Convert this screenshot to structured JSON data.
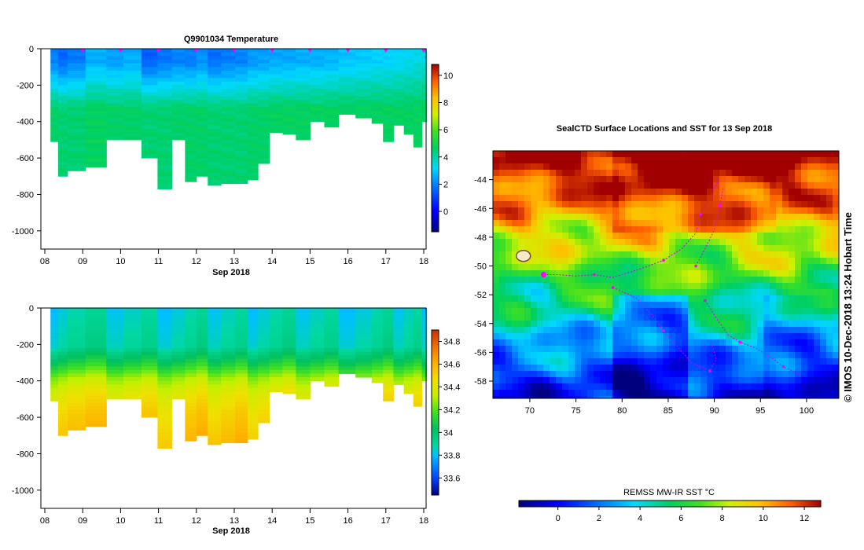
{
  "chart_data": [
    {
      "type": "heatmap",
      "title": "Q9901034  Temperature",
      "xlabel": "Sep 2018",
      "x_ticks": [
        "08",
        "09",
        "10",
        "11",
        "12",
        "13",
        "14",
        "15",
        "16",
        "17",
        "18"
      ],
      "y_ticks": [
        "0",
        "-200",
        "-400",
        "-600",
        "-800",
        "-1000"
      ],
      "ylim": [
        -1100,
        0
      ],
      "colorbar_ticks": [
        "10",
        "8",
        "6",
        "4",
        "2",
        "0"
      ],
      "colorbar_range": [
        -1.5,
        10.8
      ],
      "profiles": [
        {
          "day": 8.25,
          "max_depth": 510,
          "surface": 2.0,
          "deep": 4.6
        },
        {
          "day": 8.45,
          "max_depth": 700,
          "surface": 1.6,
          "deep": 4.5
        },
        {
          "day": 8.75,
          "max_depth": 670,
          "surface": 1.9,
          "deep": 4.5
        },
        {
          "day": 9.4,
          "max_depth": 650,
          "surface": 2.6,
          "deep": 4.7
        },
        {
          "day": 9.85,
          "max_depth": 500,
          "surface": 2.4,
          "deep": 4.6
        },
        {
          "day": 10.3,
          "max_depth": 500,
          "surface": 2.6,
          "deep": 4.6
        },
        {
          "day": 10.8,
          "max_depth": 600,
          "surface": 1.5,
          "deep": 4.5
        },
        {
          "day": 11.15,
          "max_depth": 770,
          "surface": 1.8,
          "deep": 4.5
        },
        {
          "day": 11.55,
          "max_depth": 500,
          "surface": 2.0,
          "deep": 4.6
        },
        {
          "day": 11.85,
          "max_depth": 730,
          "surface": 1.9,
          "deep": 4.6
        },
        {
          "day": 12.15,
          "max_depth": 700,
          "surface": 2.2,
          "deep": 4.6
        },
        {
          "day": 12.45,
          "max_depth": 750,
          "surface": 1.7,
          "deep": 4.5
        },
        {
          "day": 12.85,
          "max_depth": 740,
          "surface": 1.9,
          "deep": 4.5
        },
        {
          "day": 13.2,
          "max_depth": 740,
          "surface": 2.0,
          "deep": 4.5
        },
        {
          "day": 13.5,
          "max_depth": 720,
          "surface": 2.3,
          "deep": 4.6
        },
        {
          "day": 13.75,
          "max_depth": 630,
          "surface": 2.4,
          "deep": 4.6
        },
        {
          "day": 14.1,
          "max_depth": 460,
          "surface": 2.5,
          "deep": 4.7
        },
        {
          "day": 14.45,
          "max_depth": 470,
          "surface": 2.5,
          "deep": 4.7
        },
        {
          "day": 14.8,
          "max_depth": 500,
          "surface": 2.6,
          "deep": 4.7
        },
        {
          "day": 15.2,
          "max_depth": 400,
          "surface": 2.6,
          "deep": 4.7
        },
        {
          "day": 15.55,
          "max_depth": 430,
          "surface": 2.7,
          "deep": 4.7
        },
        {
          "day": 15.95,
          "max_depth": 360,
          "surface": 2.9,
          "deep": 4.7
        },
        {
          "day": 16.45,
          "max_depth": 380,
          "surface": 3.0,
          "deep": 4.7
        },
        {
          "day": 16.8,
          "max_depth": 410,
          "surface": 3.1,
          "deep": 4.7
        },
        {
          "day": 17.05,
          "max_depth": 510,
          "surface": 3.1,
          "deep": 4.7
        },
        {
          "day": 17.35,
          "max_depth": 420,
          "surface": 3.2,
          "deep": 4.7
        },
        {
          "day": 17.6,
          "max_depth": 470,
          "surface": 3.3,
          "deep": 4.7
        },
        {
          "day": 17.85,
          "max_depth": 540,
          "surface": 3.4,
          "deep": 4.7
        },
        {
          "day": 18.05,
          "max_depth": 400,
          "surface": 3.5,
          "deep": 4.7
        }
      ],
      "surface_markers": [
        9,
        10,
        11,
        12,
        13,
        14,
        15,
        16,
        17,
        18
      ]
    },
    {
      "type": "heatmap",
      "title": "",
      "xlabel": "Sep 2018",
      "x_ticks": [
        "08",
        "09",
        "10",
        "11",
        "12",
        "13",
        "14",
        "15",
        "16",
        "17",
        "18"
      ],
      "y_ticks": [
        "0",
        "-200",
        "-400",
        "-600",
        "-800",
        "-1000"
      ],
      "ylim": [
        -1100,
        0
      ],
      "colorbar_ticks": [
        "34.8",
        "34.6",
        "34.4",
        "34.2",
        "34",
        "33.8",
        "33.6"
      ],
      "colorbar_range": [
        33.45,
        34.9
      ],
      "salinity_profile": [
        {
          "depth": 0,
          "value": 33.85
        },
        {
          "depth": 200,
          "value": 33.9
        },
        {
          "depth": 300,
          "value": 34.1
        },
        {
          "depth": 380,
          "value": 34.3
        },
        {
          "depth": 460,
          "value": 34.42
        },
        {
          "depth": 560,
          "value": 34.5
        },
        {
          "depth": 680,
          "value": 34.56
        },
        {
          "depth": 780,
          "value": 34.6
        }
      ]
    },
    {
      "type": "heatmap",
      "title": "SealCTD Surface Locations and SST for 13 Sep 2018",
      "x_ticks": [
        "70",
        "75",
        "80",
        "85",
        "90",
        "95",
        "100"
      ],
      "y_ticks": [
        "-44",
        "-46",
        "-48",
        "-50",
        "-52",
        "-54",
        "-56",
        "-58"
      ],
      "xlim": [
        66.0,
        103.5
      ],
      "ylim": [
        -59.2,
        -42.0
      ],
      "colorbar_label": "REMSS MW-IR SST °C",
      "colorbar_ticks": [
        "0",
        "2",
        "4",
        "6",
        "8",
        "10",
        "12"
      ],
      "colorbar_range": [
        -1.9,
        12.8
      ],
      "side_label": "©  IMOS 10-Dec-2018 13:24 Hobart Time",
      "seal_tracks": [
        [
          [
            71.5,
            -50.6
          ],
          [
            73.0,
            -50.6
          ],
          [
            75.0,
            -50.7
          ],
          [
            77.0,
            -50.6
          ],
          [
            79.0,
            -50.8
          ],
          [
            82.0,
            -50.2
          ],
          [
            84.5,
            -49.6
          ],
          [
            86.5,
            -48.8
          ],
          [
            88.0,
            -47.7
          ],
          [
            88.5,
            -46.4
          ],
          [
            89.5,
            -45.3
          ],
          [
            90.5,
            -44.0
          ]
        ],
        [
          [
            79.0,
            -51.5
          ],
          [
            81.5,
            -52.2
          ],
          [
            83.5,
            -53.6
          ],
          [
            84.5,
            -54.5
          ],
          [
            86.0,
            -55.6
          ],
          [
            87.5,
            -56.7
          ],
          [
            89.5,
            -57.3
          ],
          [
            90.2,
            -56.5
          ],
          [
            89.8,
            -55.5
          ]
        ],
        [
          [
            89.0,
            -52.4
          ],
          [
            90.2,
            -53.6
          ],
          [
            91.5,
            -54.8
          ],
          [
            92.8,
            -55.3
          ],
          [
            94.5,
            -55.7
          ],
          [
            96.0,
            -56.3
          ],
          [
            97.5,
            -57.0
          ],
          [
            99.5,
            -57.6
          ]
        ],
        [
          [
            88.0,
            -50.0
          ],
          [
            89.0,
            -48.8
          ],
          [
            90.0,
            -47.5
          ],
          [
            90.6,
            -45.8
          ],
          [
            91.0,
            -44.5
          ]
        ]
      ],
      "current_location": [
        71.5,
        -50.6
      ],
      "island": [
        69.3,
        -49.3
      ]
    }
  ],
  "colors": {
    "axis": "#000000",
    "marker": "#ff00ff",
    "track": "#d000ff"
  }
}
